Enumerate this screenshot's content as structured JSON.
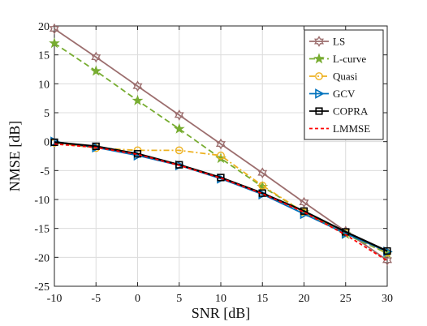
{
  "chart_data": {
    "type": "line",
    "xlabel": "SNR [dB]",
    "ylabel": "NMSE [dB]",
    "x": [
      -10,
      -5,
      0,
      5,
      10,
      15,
      20,
      25,
      30
    ],
    "xlim": [
      -10,
      30
    ],
    "ylim": [
      -25,
      20
    ],
    "xticks": [
      "-10",
      "-5",
      "0",
      "5",
      "10",
      "15",
      "20",
      "25",
      "30"
    ],
    "yticks": [
      "20",
      "15",
      "10",
      "5",
      "0",
      "-5",
      "-10",
      "-15",
      "-20",
      "-25"
    ],
    "grid": true,
    "legend_position": "top-right",
    "series": [
      {
        "name": "LS",
        "color": "#9C6E6E",
        "dash": "solid",
        "marker": "hexagram",
        "values": [
          19.5,
          14.6,
          9.6,
          4.6,
          -0.4,
          -5.4,
          -10.5,
          -15.5,
          -20.5
        ]
      },
      {
        "name": "L-curve",
        "color": "#77AC30",
        "dash": "dashed",
        "marker": "star",
        "values": [
          17.0,
          12.2,
          7.1,
          2.2,
          -2.9,
          -7.8,
          -12.2,
          -16.0,
          -19.3
        ]
      },
      {
        "name": "Quasi",
        "color": "#EDB120",
        "dash": "dashdot",
        "marker": "circle",
        "values": [
          -0.2,
          -1.1,
          -1.5,
          -1.5,
          -2.4,
          -7.6,
          -12.2,
          -15.8,
          -19.2
        ]
      },
      {
        "name": "GCV",
        "color": "#0072BD",
        "dash": "solid",
        "marker": "triangle-right",
        "values": [
          0.0,
          -1.0,
          -2.4,
          -4.1,
          -6.4,
          -9.1,
          -12.5,
          -15.9,
          -19.0
        ]
      },
      {
        "name": "COPRA",
        "color": "#000000",
        "dash": "solid",
        "marker": "square",
        "values": [
          -0.1,
          -0.8,
          -2.1,
          -4.0,
          -6.2,
          -8.9,
          -12.0,
          -15.6,
          -18.9
        ]
      },
      {
        "name": "LMMSE",
        "color": "#FF0000",
        "dash": "shortdash",
        "marker": "none",
        "values": [
          -0.4,
          -1.0,
          -2.2,
          -4.1,
          -6.3,
          -9.0,
          -12.2,
          -16.1,
          -20.6
        ]
      }
    ]
  }
}
